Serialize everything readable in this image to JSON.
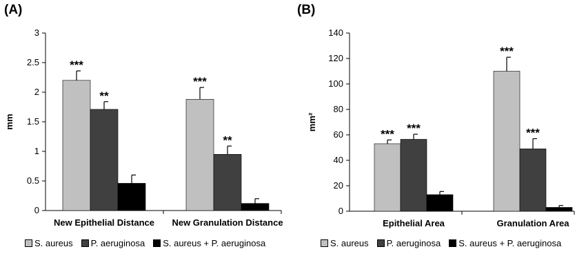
{
  "chart_data": [
    {
      "panel_label": "(A)",
      "type": "bar",
      "ylabel": "mm",
      "ylim": [
        0,
        3
      ],
      "yticks": [
        0,
        0.5,
        1,
        1.5,
        2,
        2.5,
        3
      ],
      "ytick_labels": [
        "0",
        "0.5",
        "1",
        "1.5",
        "2",
        "2.5",
        "3"
      ],
      "categories": [
        "New Epithelial Distance",
        "New Granulation Distance"
      ],
      "series": [
        {
          "name": "S. aureus",
          "color": "#c0c0c0",
          "values": [
            2.2,
            1.88
          ],
          "errors": [
            0.16,
            0.2
          ],
          "labels": [
            "***",
            "***"
          ]
        },
        {
          "name": "P. aeruginosa",
          "color": "#404040",
          "values": [
            1.71,
            0.95
          ],
          "errors": [
            0.13,
            0.14
          ],
          "labels": [
            "**",
            "**"
          ]
        },
        {
          "name": "S. aureus + P. aeruginosa",
          "color": "#000000",
          "values": [
            0.46,
            0.12
          ],
          "errors": [
            0.14,
            0.08
          ],
          "labels": [
            "",
            ""
          ]
        }
      ],
      "grid": false,
      "legend_position": "bottom"
    },
    {
      "panel_label": "(B)",
      "type": "bar",
      "ylabel": "mm²",
      "ylim": [
        0,
        140
      ],
      "yticks": [
        0,
        20,
        40,
        60,
        80,
        100,
        120,
        140
      ],
      "ytick_labels": [
        "0",
        "20",
        "40",
        "60",
        "80",
        "100",
        "120",
        "140"
      ],
      "categories": [
        "Epithelial Area",
        "Granulation Area"
      ],
      "series": [
        {
          "name": "S. aureus",
          "color": "#c0c0c0",
          "values": [
            53,
            110
          ],
          "errors": [
            3,
            11
          ],
          "labels": [
            "***",
            "***"
          ]
        },
        {
          "name": "P. aeruginosa",
          "color": "#404040",
          "values": [
            56.5,
            49
          ],
          "errors": [
            4,
            8
          ],
          "labels": [
            "***",
            "***"
          ]
        },
        {
          "name": "S. aureus + P. aeruginosa",
          "color": "#000000",
          "values": [
            13,
            3
          ],
          "errors": [
            2.5,
            1.5
          ],
          "labels": [
            "",
            ""
          ]
        }
      ],
      "grid": false,
      "legend_position": "bottom"
    }
  ]
}
